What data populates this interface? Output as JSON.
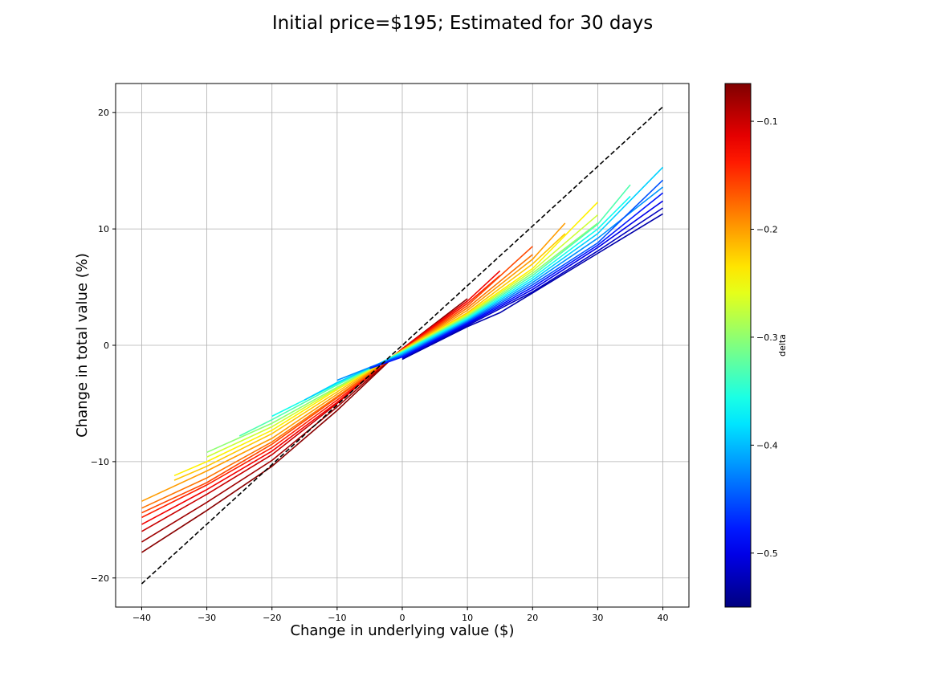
{
  "chart_data": {
    "type": "line",
    "title": "Initial price=$195; Estimated for 30 days",
    "xlabel": "Change in underlying value ($)",
    "ylabel": "Change in total value (%)",
    "xlim": [
      -44,
      44
    ],
    "ylim": [
      -22.5,
      22.5
    ],
    "xticks": [
      -40,
      -30,
      -20,
      -10,
      0,
      10,
      20,
      30,
      40
    ],
    "yticks": [
      -20,
      -10,
      0,
      10,
      20
    ],
    "grid": true,
    "reference_line": {
      "style": "dashed",
      "color": "#000000",
      "points": [
        [
          -40,
          -20.5
        ],
        [
          40,
          20.5
        ]
      ]
    },
    "colorbar": {
      "label": "delta",
      "colormap": "jet",
      "range": [
        -0.55,
        -0.065
      ],
      "ticks": [
        -0.1,
        -0.2,
        -0.3,
        -0.4,
        -0.5
      ],
      "tick_labels": [
        "−0.1",
        "−0.2",
        "−0.3",
        "−0.4",
        "−0.5"
      ]
    },
    "series": [
      {
        "delta": -0.07,
        "points": [
          [
            -40,
            -17.8
          ],
          [
            -30,
            -14.2
          ],
          [
            -20,
            -10.4
          ],
          [
            -10,
            -5.6
          ],
          [
            0,
            -0.3
          ],
          [
            10,
            4.0
          ]
        ]
      },
      {
        "delta": -0.08,
        "points": [
          [
            -40,
            -16.9
          ],
          [
            -30,
            -13.5
          ],
          [
            -20,
            -9.9
          ],
          [
            -10,
            -5.3
          ],
          [
            0,
            -0.3
          ],
          [
            10,
            3.8
          ]
        ]
      },
      {
        "delta": -0.1,
        "points": [
          [
            -40,
            -16.0
          ],
          [
            -30,
            -12.8
          ],
          [
            -20,
            -9.4
          ],
          [
            -10,
            -5.0
          ],
          [
            0,
            -0.3
          ],
          [
            10,
            3.6
          ]
        ]
      },
      {
        "delta": -0.12,
        "points": [
          [
            -40,
            -15.4
          ],
          [
            -30,
            -12.4
          ],
          [
            -20,
            -9.1
          ],
          [
            -10,
            -4.9
          ],
          [
            0,
            -0.3
          ],
          [
            10,
            3.8
          ],
          [
            15,
            6.4
          ]
        ]
      },
      {
        "delta": -0.14,
        "points": [
          [
            -40,
            -14.8
          ],
          [
            -30,
            -12.0
          ],
          [
            -20,
            -8.8
          ],
          [
            -10,
            -4.7
          ],
          [
            0,
            -0.4
          ],
          [
            10,
            3.6
          ],
          [
            15,
            6.0
          ]
        ]
      },
      {
        "delta": -0.16,
        "points": [
          [
            -40,
            -14.4
          ],
          [
            -30,
            -11.8
          ],
          [
            -20,
            -8.5
          ],
          [
            -10,
            -4.5
          ],
          [
            0,
            -0.4
          ],
          [
            10,
            3.4
          ],
          [
            20,
            8.5
          ]
        ]
      },
      {
        "delta": -0.18,
        "points": [
          [
            -40,
            -14.0
          ],
          [
            -30,
            -11.4
          ],
          [
            -20,
            -8.3
          ],
          [
            -10,
            -4.4
          ],
          [
            0,
            -0.4
          ],
          [
            10,
            3.2
          ],
          [
            20,
            7.8
          ]
        ]
      },
      {
        "delta": -0.2,
        "points": [
          [
            -40,
            -13.4
          ],
          [
            -30,
            -10.8
          ],
          [
            -20,
            -8.0
          ],
          [
            -10,
            -4.2
          ],
          [
            0,
            -0.4
          ],
          [
            10,
            3.0
          ],
          [
            20,
            7.4
          ],
          [
            25,
            10.5
          ]
        ]
      },
      {
        "delta": -0.22,
        "points": [
          [
            -35,
            -11.6
          ],
          [
            -30,
            -10.4
          ],
          [
            -20,
            -7.6
          ],
          [
            -10,
            -4.0
          ],
          [
            0,
            -0.4
          ],
          [
            10,
            2.8
          ],
          [
            20,
            7.0
          ],
          [
            25,
            9.6
          ]
        ]
      },
      {
        "delta": -0.24,
        "points": [
          [
            -35,
            -11.2
          ],
          [
            -30,
            -10.0
          ],
          [
            -20,
            -7.3
          ],
          [
            -10,
            -3.8
          ],
          [
            0,
            -0.5
          ],
          [
            10,
            2.7
          ],
          [
            20,
            6.6
          ],
          [
            30,
            12.3
          ]
        ]
      },
      {
        "delta": -0.27,
        "points": [
          [
            -30,
            -9.6
          ],
          [
            -20,
            -7.0
          ],
          [
            -10,
            -3.7
          ],
          [
            0,
            -0.5
          ],
          [
            10,
            2.6
          ],
          [
            20,
            6.4
          ],
          [
            30,
            11.2
          ]
        ]
      },
      {
        "delta": -0.3,
        "points": [
          [
            -30,
            -9.2
          ],
          [
            -20,
            -6.7
          ],
          [
            -10,
            -3.6
          ],
          [
            0,
            -0.5
          ],
          [
            10,
            2.5
          ],
          [
            20,
            6.2
          ],
          [
            30,
            10.5
          ]
        ]
      },
      {
        "delta": -0.33,
        "points": [
          [
            -25,
            -7.8
          ],
          [
            -20,
            -6.4
          ],
          [
            -10,
            -3.4
          ],
          [
            0,
            -0.6
          ],
          [
            10,
            2.4
          ],
          [
            20,
            6.0
          ],
          [
            30,
            10.4
          ],
          [
            35,
            13.8
          ]
        ]
      },
      {
        "delta": -0.36,
        "points": [
          [
            -20,
            -6.1
          ],
          [
            -10,
            -3.3
          ],
          [
            0,
            -0.6
          ],
          [
            10,
            2.3
          ],
          [
            20,
            5.8
          ],
          [
            30,
            10.0
          ],
          [
            35,
            12.8
          ]
        ]
      },
      {
        "delta": -0.39,
        "points": [
          [
            -15,
            -4.7
          ],
          [
            -10,
            -3.2
          ],
          [
            0,
            -0.7
          ],
          [
            10,
            2.2
          ],
          [
            20,
            5.6
          ],
          [
            30,
            9.6
          ],
          [
            40,
            15.3
          ]
        ]
      },
      {
        "delta": -0.42,
        "points": [
          [
            -10,
            -3.0
          ],
          [
            0,
            -0.8
          ],
          [
            10,
            2.1
          ],
          [
            20,
            5.4
          ],
          [
            30,
            9.2
          ],
          [
            40,
            13.6
          ]
        ]
      },
      {
        "delta": -0.45,
        "points": [
          [
            -5,
            -1.9
          ],
          [
            0,
            -0.9
          ],
          [
            10,
            2.0
          ],
          [
            20,
            5.2
          ],
          [
            30,
            8.8
          ],
          [
            40,
            14.2
          ]
        ]
      },
      {
        "delta": -0.48,
        "points": [
          [
            -5,
            -2.0
          ],
          [
            0,
            -1.0
          ],
          [
            10,
            1.9
          ],
          [
            20,
            5.0
          ],
          [
            30,
            8.6
          ],
          [
            40,
            13.1
          ]
        ]
      },
      {
        "delta": -0.5,
        "points": [
          [
            0,
            -1.1
          ],
          [
            10,
            1.8
          ],
          [
            20,
            4.8
          ],
          [
            30,
            8.4
          ],
          [
            40,
            12.4
          ]
        ]
      },
      {
        "delta": -0.52,
        "points": [
          [
            0,
            -1.2
          ],
          [
            10,
            1.7
          ],
          [
            20,
            4.6
          ],
          [
            30,
            8.1
          ],
          [
            40,
            11.8
          ]
        ]
      },
      {
        "delta": -0.53,
        "points": [
          [
            0,
            -1.2
          ],
          [
            10,
            1.6
          ],
          [
            15,
            2.8
          ],
          [
            20,
            4.5
          ],
          [
            30,
            7.9
          ],
          [
            40,
            11.3
          ]
        ]
      }
    ]
  }
}
